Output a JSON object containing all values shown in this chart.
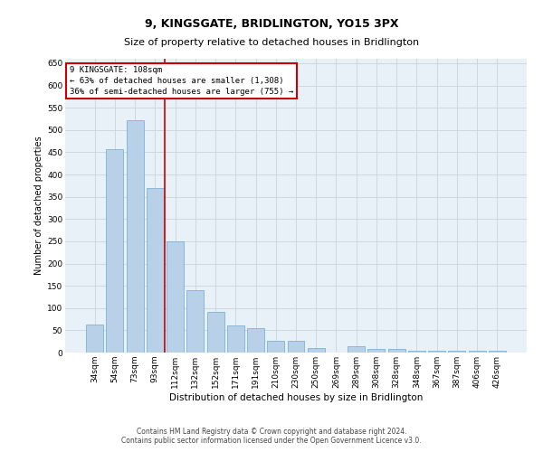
{
  "title": "9, KINGSGATE, BRIDLINGTON, YO15 3PX",
  "subtitle": "Size of property relative to detached houses in Bridlington",
  "xlabel": "Distribution of detached houses by size in Bridlington",
  "ylabel": "Number of detached properties",
  "categories": [
    "34sqm",
    "54sqm",
    "73sqm",
    "93sqm",
    "112sqm",
    "132sqm",
    "152sqm",
    "171sqm",
    "191sqm",
    "210sqm",
    "230sqm",
    "250sqm",
    "269sqm",
    "289sqm",
    "308sqm",
    "328sqm",
    "348sqm",
    "367sqm",
    "387sqm",
    "406sqm",
    "426sqm"
  ],
  "values": [
    63,
    457,
    521,
    369,
    249,
    140,
    92,
    61,
    55,
    27,
    27,
    10,
    0,
    14,
    8,
    8,
    5,
    5,
    5,
    5,
    5
  ],
  "bar_color": "#b8d0e8",
  "bar_edge_color": "#6aaad4",
  "vline_x": 3.5,
  "vline_color": "#cc0000",
  "annotation_title": "9 KINGSGATE: 108sqm",
  "annotation_line1": "← 63% of detached houses are smaller (1,308)",
  "annotation_line2": "36% of semi-detached houses are larger (755) →",
  "annotation_box_edgecolor": "#cc0000",
  "ylim": [
    0,
    660
  ],
  "yticks": [
    0,
    50,
    100,
    150,
    200,
    250,
    300,
    350,
    400,
    450,
    500,
    550,
    600,
    650
  ],
  "plot_bg_color": "#e8f0f8",
  "grid_color": "#c8d4e0",
  "footer_line1": "Contains HM Land Registry data © Crown copyright and database right 2024.",
  "footer_line2": "Contains public sector information licensed under the Open Government Licence v3.0.",
  "title_fontsize": 9,
  "subtitle_fontsize": 8,
  "xlabel_fontsize": 7.5,
  "ylabel_fontsize": 7,
  "tick_fontsize": 6.5,
  "annotation_fontsize": 6.5,
  "footer_fontsize": 5.5
}
